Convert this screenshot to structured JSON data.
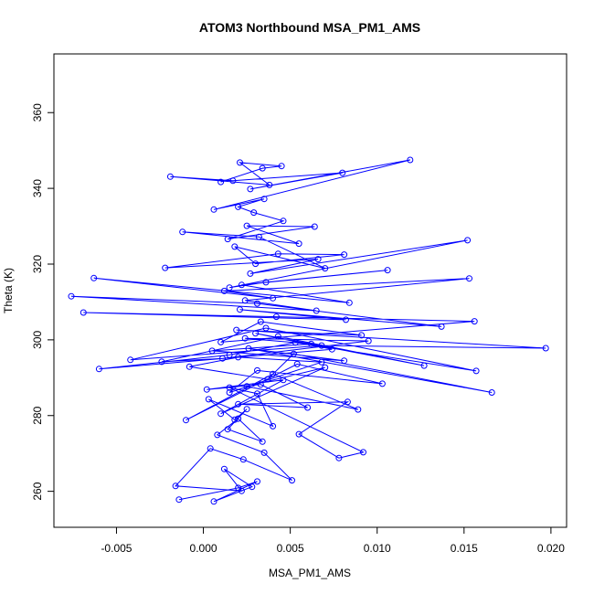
{
  "chart_data": {
    "type": "line",
    "title": "ATOM3 Northbound MSA_PM1_AMS",
    "xlabel": "MSA_PM1_AMS",
    "ylabel": "Theta (K)",
    "xlim": [
      -0.0086,
      0.0209
    ],
    "ylim": [
      250.5,
      375.5
    ],
    "x_ticks": [
      -0.005,
      0.0,
      0.005,
      0.01,
      0.015,
      0.02
    ],
    "x_tick_labels": [
      "-0.005",
      "0.000",
      "0.005",
      "0.010",
      "0.015",
      "0.020"
    ],
    "y_ticks": [
      260,
      280,
      300,
      320,
      340,
      360
    ],
    "y_tick_labels": [
      "260",
      "280",
      "300",
      "320",
      "340",
      "360"
    ],
    "grid": false,
    "series": [
      {
        "color": "#0000ff",
        "marker": "open-circle",
        "x": [
          -0.0014,
          0.002,
          0.0031,
          0.0006,
          0.0028,
          0.0012,
          0.0022,
          -0.0016,
          0.0004,
          0.0023,
          0.0051,
          0.0035,
          0.0008,
          0.002,
          0.0034,
          0.0014,
          0.0025,
          0.0018,
          0.0003,
          0.004,
          0.0031,
          0.0015,
          0.0092,
          0.0078,
          0.0055,
          0.0083,
          0.002,
          0.006,
          0.0033,
          0.0002,
          0.0046,
          0.001,
          0.007,
          0.0025,
          0.0089,
          0.004,
          -0.001,
          0.0054,
          0.0103,
          0.0031,
          0.0015,
          0.0068,
          0.002,
          -0.0008,
          0.0037,
          0.0052,
          0.0166,
          0.0026,
          0.0081,
          0.0005,
          0.0062,
          0.0024,
          0.0095,
          0.0011,
          -0.0024,
          0.0043,
          0.0127,
          0.003,
          0.0074,
          -0.006,
          0.0015,
          0.0053,
          0.0157,
          0.0036,
          -0.0042,
          0.0068,
          0.0197,
          0.0019,
          0.0091,
          0.0033,
          0.001,
          0.0156,
          0.0042,
          -0.0069,
          0.0082,
          0.0021,
          0.0137,
          0.0031,
          -0.0076,
          0.0065,
          0.0024,
          0.0153,
          0.0012,
          0.004,
          -0.0063,
          0.0084,
          0.0022,
          0.0106,
          0.0036,
          0.0015,
          0.0152,
          0.0027,
          0.0066,
          -0.0022,
          0.0043,
          0.0081,
          0.003,
          0.0018,
          0.007,
          0.0032,
          -0.0012,
          0.0055,
          0.0025,
          0.0064,
          0.0014,
          0.0046,
          0.0029,
          0.002,
          0.0035,
          0.0006,
          0.0119,
          0.0027,
          0.008,
          0.0017,
          -0.0019,
          0.0038,
          0.0021,
          0.0045,
          0.0034,
          0.001
        ],
        "y": [
          257.8,
          260.9,
          262.6,
          257.3,
          261.2,
          265.9,
          260.1,
          261.4,
          271.3,
          268.4,
          262.9,
          270.2,
          274.9,
          279.2,
          273.1,
          276.4,
          281.7,
          278.9,
          284.3,
          277.2,
          285.8,
          287.4,
          270.3,
          268.8,
          275.1,
          283.6,
          283.0,
          282.1,
          288.2,
          286.9,
          289.4,
          280.5,
          292.7,
          287.7,
          281.6,
          291.0,
          278.8,
          293.6,
          288.4,
          291.9,
          286.1,
          294.1,
          295.4,
          292.9,
          289.6,
          296.3,
          286.1,
          297.7,
          294.5,
          297.1,
          298.9,
          300.4,
          299.7,
          295.1,
          294.2,
          300.9,
          293.2,
          301.7,
          297.5,
          292.3,
          296.0,
          299.3,
          291.8,
          303.1,
          294.7,
          298.5,
          297.8,
          302.6,
          301.2,
          304.8,
          299.4,
          304.9,
          306.1,
          307.2,
          305.3,
          308.0,
          303.5,
          309.6,
          311.5,
          307.7,
          310.4,
          316.2,
          312.9,
          311.0,
          316.3,
          309.8,
          314.5,
          318.4,
          315.2,
          313.8,
          326.3,
          317.5,
          321.3,
          319.0,
          322.7,
          322.5,
          320.1,
          324.6,
          318.9,
          327.2,
          328.5,
          325.4,
          330.1,
          329.9,
          326.6,
          331.4,
          333.6,
          335.1,
          337.2,
          334.4,
          347.5,
          339.8,
          344.1,
          342.0,
          343.1,
          340.9,
          346.8,
          345.9,
          345.3,
          341.7
        ]
      }
    ]
  }
}
